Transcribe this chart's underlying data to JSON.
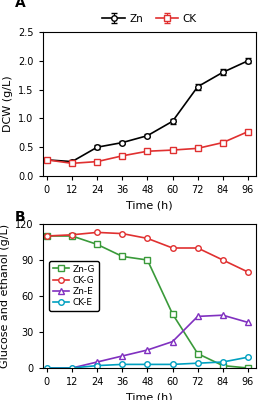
{
  "time": [
    0,
    12,
    24,
    36,
    48,
    60,
    72,
    84,
    96
  ],
  "panel_A": {
    "title": "A",
    "ylabel": "DCW (g/L)",
    "xlabel": "Time (h)",
    "ylim": [
      0.0,
      2.5
    ],
    "yticks": [
      0.0,
      0.5,
      1.0,
      1.5,
      2.0,
      2.5
    ],
    "series": {
      "Zn": {
        "values": [
          0.28,
          0.25,
          0.5,
          0.58,
          0.7,
          0.95,
          1.55,
          1.8,
          2.0
        ],
        "errors": [
          0.02,
          0.02,
          0.03,
          0.03,
          0.03,
          0.04,
          0.05,
          0.05,
          0.04
        ],
        "color": "#000000",
        "marker": "o",
        "mfc": "white",
        "linestyle": "-"
      },
      "CK": {
        "values": [
          0.28,
          0.22,
          0.25,
          0.35,
          0.43,
          0.45,
          0.48,
          0.58,
          0.77
        ],
        "errors": [
          0.02,
          0.02,
          0.02,
          0.02,
          0.03,
          0.02,
          0.02,
          0.04,
          0.03
        ],
        "color": "#e03030",
        "marker": "s",
        "mfc": "white",
        "linestyle": "-"
      }
    }
  },
  "panel_B": {
    "title": "B",
    "ylabel": "Glucose and ethanol (g/L)",
    "xlabel": "Time (h)",
    "ylim": [
      0,
      120
    ],
    "yticks": [
      0,
      30,
      60,
      90,
      120
    ],
    "series": {
      "Zn-G": {
        "values": [
          110,
          110,
          103,
          93,
          90,
          45,
          12,
          2,
          0
        ],
        "color": "#3a9a3a",
        "marker": "s",
        "mfc": "white",
        "linestyle": "-"
      },
      "CK-G": {
        "values": [
          110,
          111,
          113,
          112,
          108,
          100,
          100,
          90,
          80
        ],
        "color": "#e03030",
        "marker": "o",
        "mfc": "white",
        "linestyle": "-"
      },
      "Zn-E": {
        "values": [
          0,
          0,
          5,
          10,
          15,
          22,
          43,
          44,
          38
        ],
        "color": "#8030c0",
        "marker": "^",
        "mfc": "white",
        "linestyle": "-"
      },
      "CK-E": {
        "values": [
          0,
          0,
          2,
          3,
          3,
          3,
          4,
          5,
          9
        ],
        "color": "#00a0c0",
        "marker": "o",
        "mfc": "white",
        "linestyle": "-"
      }
    }
  }
}
